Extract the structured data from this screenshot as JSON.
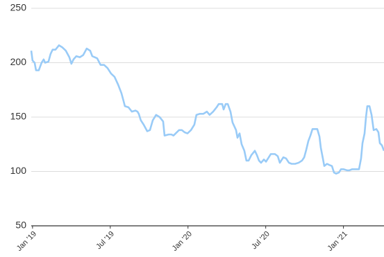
{
  "chart_data": {
    "type": "line",
    "x": [
      -0.1,
      0,
      0.16,
      0.27,
      0.48,
      0.7,
      0.86,
      0.97,
      1.23,
      1.39,
      1.55,
      1.77,
      2.04,
      2.31,
      2.57,
      2.84,
      3.0,
      3.16,
      3.38,
      3.65,
      3.91,
      4.18,
      4.45,
      4.61,
      4.99,
      5.25,
      5.52,
      5.79,
      6.06,
      6.33,
      6.6,
      6.86,
      7.02,
      7.13,
      7.4,
      7.67,
      7.94,
      8.1,
      8.2,
      8.36,
      8.58,
      8.85,
      9.06,
      9.28,
      9.54,
      9.81,
      10.08,
      10.19,
      10.51,
      10.72,
      10.88,
      11.05,
      11.31,
      11.53,
      11.74,
      11.96,
      12.23,
      12.49,
      12.65,
      12.92,
      13.19,
      13.46,
      13.67,
      13.94,
      14.21,
      14.37,
      14.64,
      14.75,
      14.91,
      15.07,
      15.28,
      15.44,
      15.71,
      15.82,
      15.98,
      16.14,
      16.35,
      16.51,
      16.68,
      16.89,
      17.16,
      17.32,
      17.48,
      17.64,
      17.86,
      18.02,
      18.18,
      18.39,
      18.71,
      18.93,
      19.09,
      19.36,
      19.57,
      19.79,
      20.0,
      20.27,
      20.54,
      20.8,
      20.97,
      21.13,
      21.29,
      21.45,
      21.61,
      21.98,
      22.15,
      22.25,
      22.41,
      22.52,
      22.73,
      22.9,
      23.11,
      23.27,
      23.43,
      23.65,
      23.81,
      24.02,
      24.29,
      24.45,
      24.66,
      24.93,
      25.2,
      25.36,
      25.47,
      25.63,
      25.74,
      25.84,
      26.01,
      26.17,
      26.33,
      26.54,
      26.7,
      26.81,
      26.97,
      27.13
    ],
    "series": [
      {
        "color": "#99cbf7",
        "values": [
          211,
          202,
          200,
          193,
          193,
          200,
          203,
          200,
          201,
          208,
          212,
          212,
          216,
          214,
          211,
          205,
          199,
          203,
          206,
          205,
          207,
          213,
          211,
          206,
          204,
          198,
          198,
          195,
          190,
          187,
          180,
          172,
          165,
          160,
          159,
          155,
          156,
          155,
          153,
          147,
          143,
          137,
          138,
          147,
          152,
          150,
          146,
          133,
          134,
          134,
          133,
          135,
          138,
          138,
          136,
          135,
          138,
          143,
          152,
          153,
          153,
          155,
          152,
          155,
          159,
          162,
          162,
          157,
          162,
          162,
          155,
          145,
          138,
          131,
          135,
          125,
          119,
          110,
          110,
          115,
          119,
          115,
          110,
          108,
          111,
          109,
          112,
          116,
          116,
          114,
          108,
          113,
          112,
          108,
          107,
          107,
          108,
          110,
          113,
          120,
          128,
          133,
          139,
          139,
          132,
          122,
          112,
          105,
          107,
          106,
          105,
          99,
          98,
          99,
          102,
          102,
          101,
          101,
          102,
          102,
          102,
          112,
          126,
          135,
          150,
          160,
          160,
          152,
          138,
          139,
          136,
          126,
          124,
          119
        ]
      }
    ],
    "xlim": [
      -0.1,
      27.13
    ],
    "xticks": [
      {
        "value": 0,
        "label": "Jan '19"
      },
      {
        "value": 6,
        "label": "Jul '19"
      },
      {
        "value": 12,
        "label": "Jan '20"
      },
      {
        "value": 18,
        "label": "Jul '20"
      },
      {
        "value": 24,
        "label": "Jan '21"
      }
    ],
    "ylim": [
      50,
      250
    ],
    "yticks": [
      50,
      100,
      150,
      200,
      250
    ],
    "grid": true
  }
}
